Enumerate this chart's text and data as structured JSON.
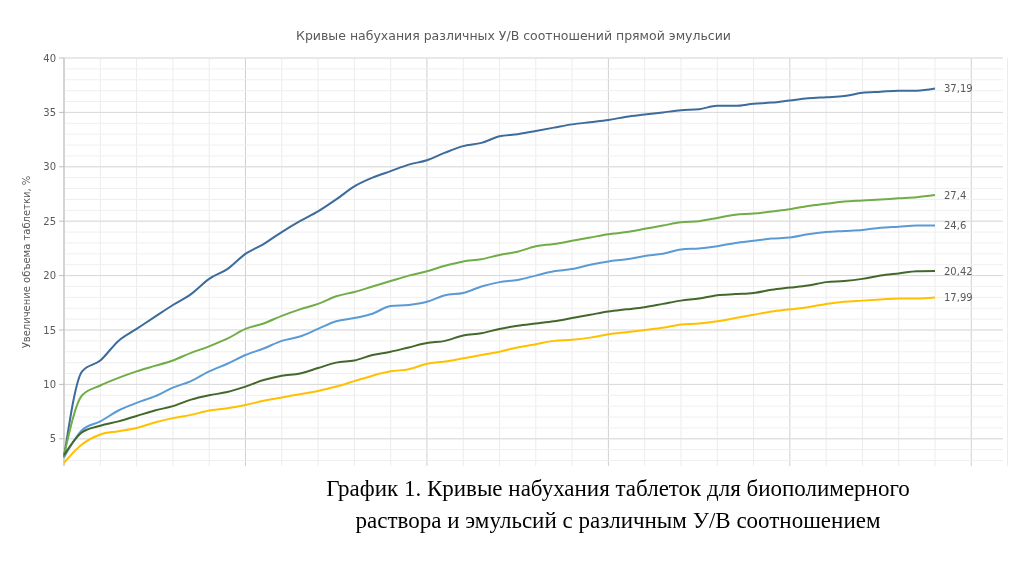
{
  "chart_data": {
    "type": "line",
    "title": "Кривые набухания различных У/В соотношений прямой эмульсии",
    "ylabel": "Увеличение объема таблетки, %",
    "categories": [
      null,
      null,
      null,
      null,
      null,
      null,
      null,
      null,
      null,
      null,
      null,
      null,
      null,
      null,
      null,
      null,
      null,
      null,
      null,
      null,
      null,
      null,
      null,
      null,
      null,
      null,
      null,
      null,
      null,
      null,
      null,
      null,
      null,
      null,
      null,
      null,
      null,
      null,
      null,
      null,
      null,
      null,
      null,
      null,
      null,
      null,
      null,
      null,
      null
    ],
    "ylim": [
      2.5,
      40
    ],
    "yticks": [
      5,
      10,
      15,
      20,
      25,
      30,
      35,
      40
    ],
    "grid": true,
    "line_style": "solid",
    "marker": "none",
    "series": [
      {
        "color": "#3d6b9b",
        "values": [
          3.3,
          11.2,
          12.2,
          14.0,
          15.1,
          16.2,
          17.3,
          18.3,
          19.7,
          20.6,
          22.0,
          22.9,
          24.0,
          25.0,
          25.9,
          27.0,
          28.2,
          29.0,
          29.6,
          30.2,
          30.6,
          31.3,
          31.9,
          32.2,
          32.8,
          33.0,
          33.3,
          33.6,
          33.9,
          34.1,
          34.3,
          34.6,
          34.8,
          35.0,
          35.2,
          35.3,
          35.6,
          35.6,
          35.8,
          35.9,
          36.1,
          36.3,
          36.4,
          36.5,
          36.8,
          36.9,
          37.0,
          37.0,
          37.19
        ],
        "value_labels": [
          null,
          null,
          null,
          null,
          null,
          null,
          null,
          null,
          null,
          null,
          null,
          null,
          null,
          null,
          null,
          null,
          null,
          null,
          null,
          null,
          null,
          null,
          null,
          null,
          null,
          null,
          null,
          null,
          null,
          null,
          null,
          null,
          null,
          null,
          null,
          null,
          null,
          null,
          null,
          null,
          null,
          null,
          null,
          null,
          null,
          null,
          null,
          null,
          "37,19"
        ]
      },
      {
        "color": "#70ad47",
        "values": [
          3.5,
          9.0,
          9.9,
          10.6,
          11.2,
          11.7,
          12.2,
          12.9,
          13.5,
          14.2,
          15.1,
          15.6,
          16.3,
          16.9,
          17.4,
          18.1,
          18.5,
          19.0,
          19.5,
          20.0,
          20.4,
          20.9,
          21.3,
          21.5,
          21.9,
          22.2,
          22.7,
          22.9,
          23.2,
          23.5,
          23.8,
          24.0,
          24.3,
          24.6,
          24.9,
          25.0,
          25.3,
          25.6,
          25.7,
          25.9,
          26.1,
          26.4,
          26.6,
          26.8,
          26.9,
          27.0,
          27.1,
          27.2,
          27.4
        ],
        "value_labels": [
          null,
          null,
          null,
          null,
          null,
          null,
          null,
          null,
          null,
          null,
          null,
          null,
          null,
          null,
          null,
          null,
          null,
          null,
          null,
          null,
          null,
          null,
          null,
          null,
          null,
          null,
          null,
          null,
          null,
          null,
          null,
          null,
          null,
          null,
          null,
          null,
          null,
          null,
          null,
          null,
          null,
          null,
          null,
          null,
          null,
          null,
          null,
          null,
          "27,4"
        ]
      },
      {
        "color": "#5b9bd5",
        "values": [
          3.3,
          5.8,
          6.6,
          7.6,
          8.3,
          8.9,
          9.7,
          10.3,
          11.2,
          11.9,
          12.7,
          13.3,
          14.0,
          14.4,
          15.1,
          15.8,
          16.1,
          16.5,
          17.2,
          17.3,
          17.6,
          18.2,
          18.4,
          19.0,
          19.4,
          19.6,
          20.0,
          20.4,
          20.6,
          21.0,
          21.3,
          21.5,
          21.8,
          22.0,
          22.4,
          22.5,
          22.7,
          23.0,
          23.2,
          23.4,
          23.5,
          23.8,
          24.0,
          24.1,
          24.2,
          24.4,
          24.5,
          24.6,
          24.6
        ],
        "value_labels": [
          null,
          null,
          null,
          null,
          null,
          null,
          null,
          null,
          null,
          null,
          null,
          null,
          null,
          null,
          null,
          null,
          null,
          null,
          null,
          null,
          null,
          null,
          null,
          null,
          null,
          null,
          null,
          null,
          null,
          null,
          null,
          null,
          null,
          null,
          null,
          null,
          null,
          null,
          null,
          null,
          null,
          null,
          null,
          null,
          null,
          null,
          null,
          null,
          "24,6"
        ]
      },
      {
        "color": "#43682b",
        "values": [
          3.5,
          5.6,
          6.2,
          6.6,
          7.1,
          7.6,
          8.0,
          8.6,
          9.0,
          9.3,
          9.8,
          10.4,
          10.8,
          11.0,
          11.5,
          12.0,
          12.2,
          12.7,
          13.0,
          13.4,
          13.8,
          14.0,
          14.5,
          14.7,
          15.1,
          15.4,
          15.6,
          15.8,
          16.1,
          16.4,
          16.7,
          16.9,
          17.1,
          17.4,
          17.7,
          17.9,
          18.2,
          18.3,
          18.4,
          18.7,
          18.9,
          19.1,
          19.4,
          19.5,
          19.7,
          20.0,
          20.2,
          20.4,
          20.42
        ],
        "value_labels": [
          null,
          null,
          null,
          null,
          null,
          null,
          null,
          null,
          null,
          null,
          null,
          null,
          null,
          null,
          null,
          null,
          null,
          null,
          null,
          null,
          null,
          null,
          null,
          null,
          null,
          null,
          null,
          null,
          null,
          null,
          null,
          null,
          null,
          null,
          null,
          null,
          null,
          null,
          null,
          null,
          null,
          null,
          null,
          null,
          null,
          null,
          null,
          null,
          "20,42"
        ]
      },
      {
        "color": "#ffc000",
        "values": [
          2.8,
          4.5,
          5.4,
          5.7,
          6.0,
          6.5,
          6.9,
          7.2,
          7.6,
          7.8,
          8.1,
          8.5,
          8.8,
          9.1,
          9.4,
          9.8,
          10.3,
          10.8,
          11.2,
          11.4,
          11.9,
          12.1,
          12.4,
          12.7,
          13.0,
          13.4,
          13.7,
          14.0,
          14.1,
          14.3,
          14.6,
          14.8,
          15.0,
          15.2,
          15.5,
          15.6,
          15.8,
          16.1,
          16.4,
          16.7,
          16.9,
          17.1,
          17.4,
          17.6,
          17.7,
          17.8,
          17.9,
          17.9,
          17.99
        ],
        "value_labels": [
          null,
          null,
          null,
          null,
          null,
          null,
          null,
          null,
          null,
          null,
          null,
          null,
          null,
          null,
          null,
          null,
          null,
          null,
          null,
          null,
          null,
          null,
          null,
          null,
          null,
          null,
          null,
          null,
          null,
          null,
          null,
          null,
          null,
          null,
          null,
          null,
          null,
          null,
          null,
          null,
          null,
          null,
          null,
          null,
          null,
          null,
          null,
          null,
          "17,99"
        ]
      }
    ],
    "annotations": [
      "График  1. Кривые набухания таблеток для биополимерного\nраствора и эмульсий с различным У/В соотношением"
    ]
  }
}
